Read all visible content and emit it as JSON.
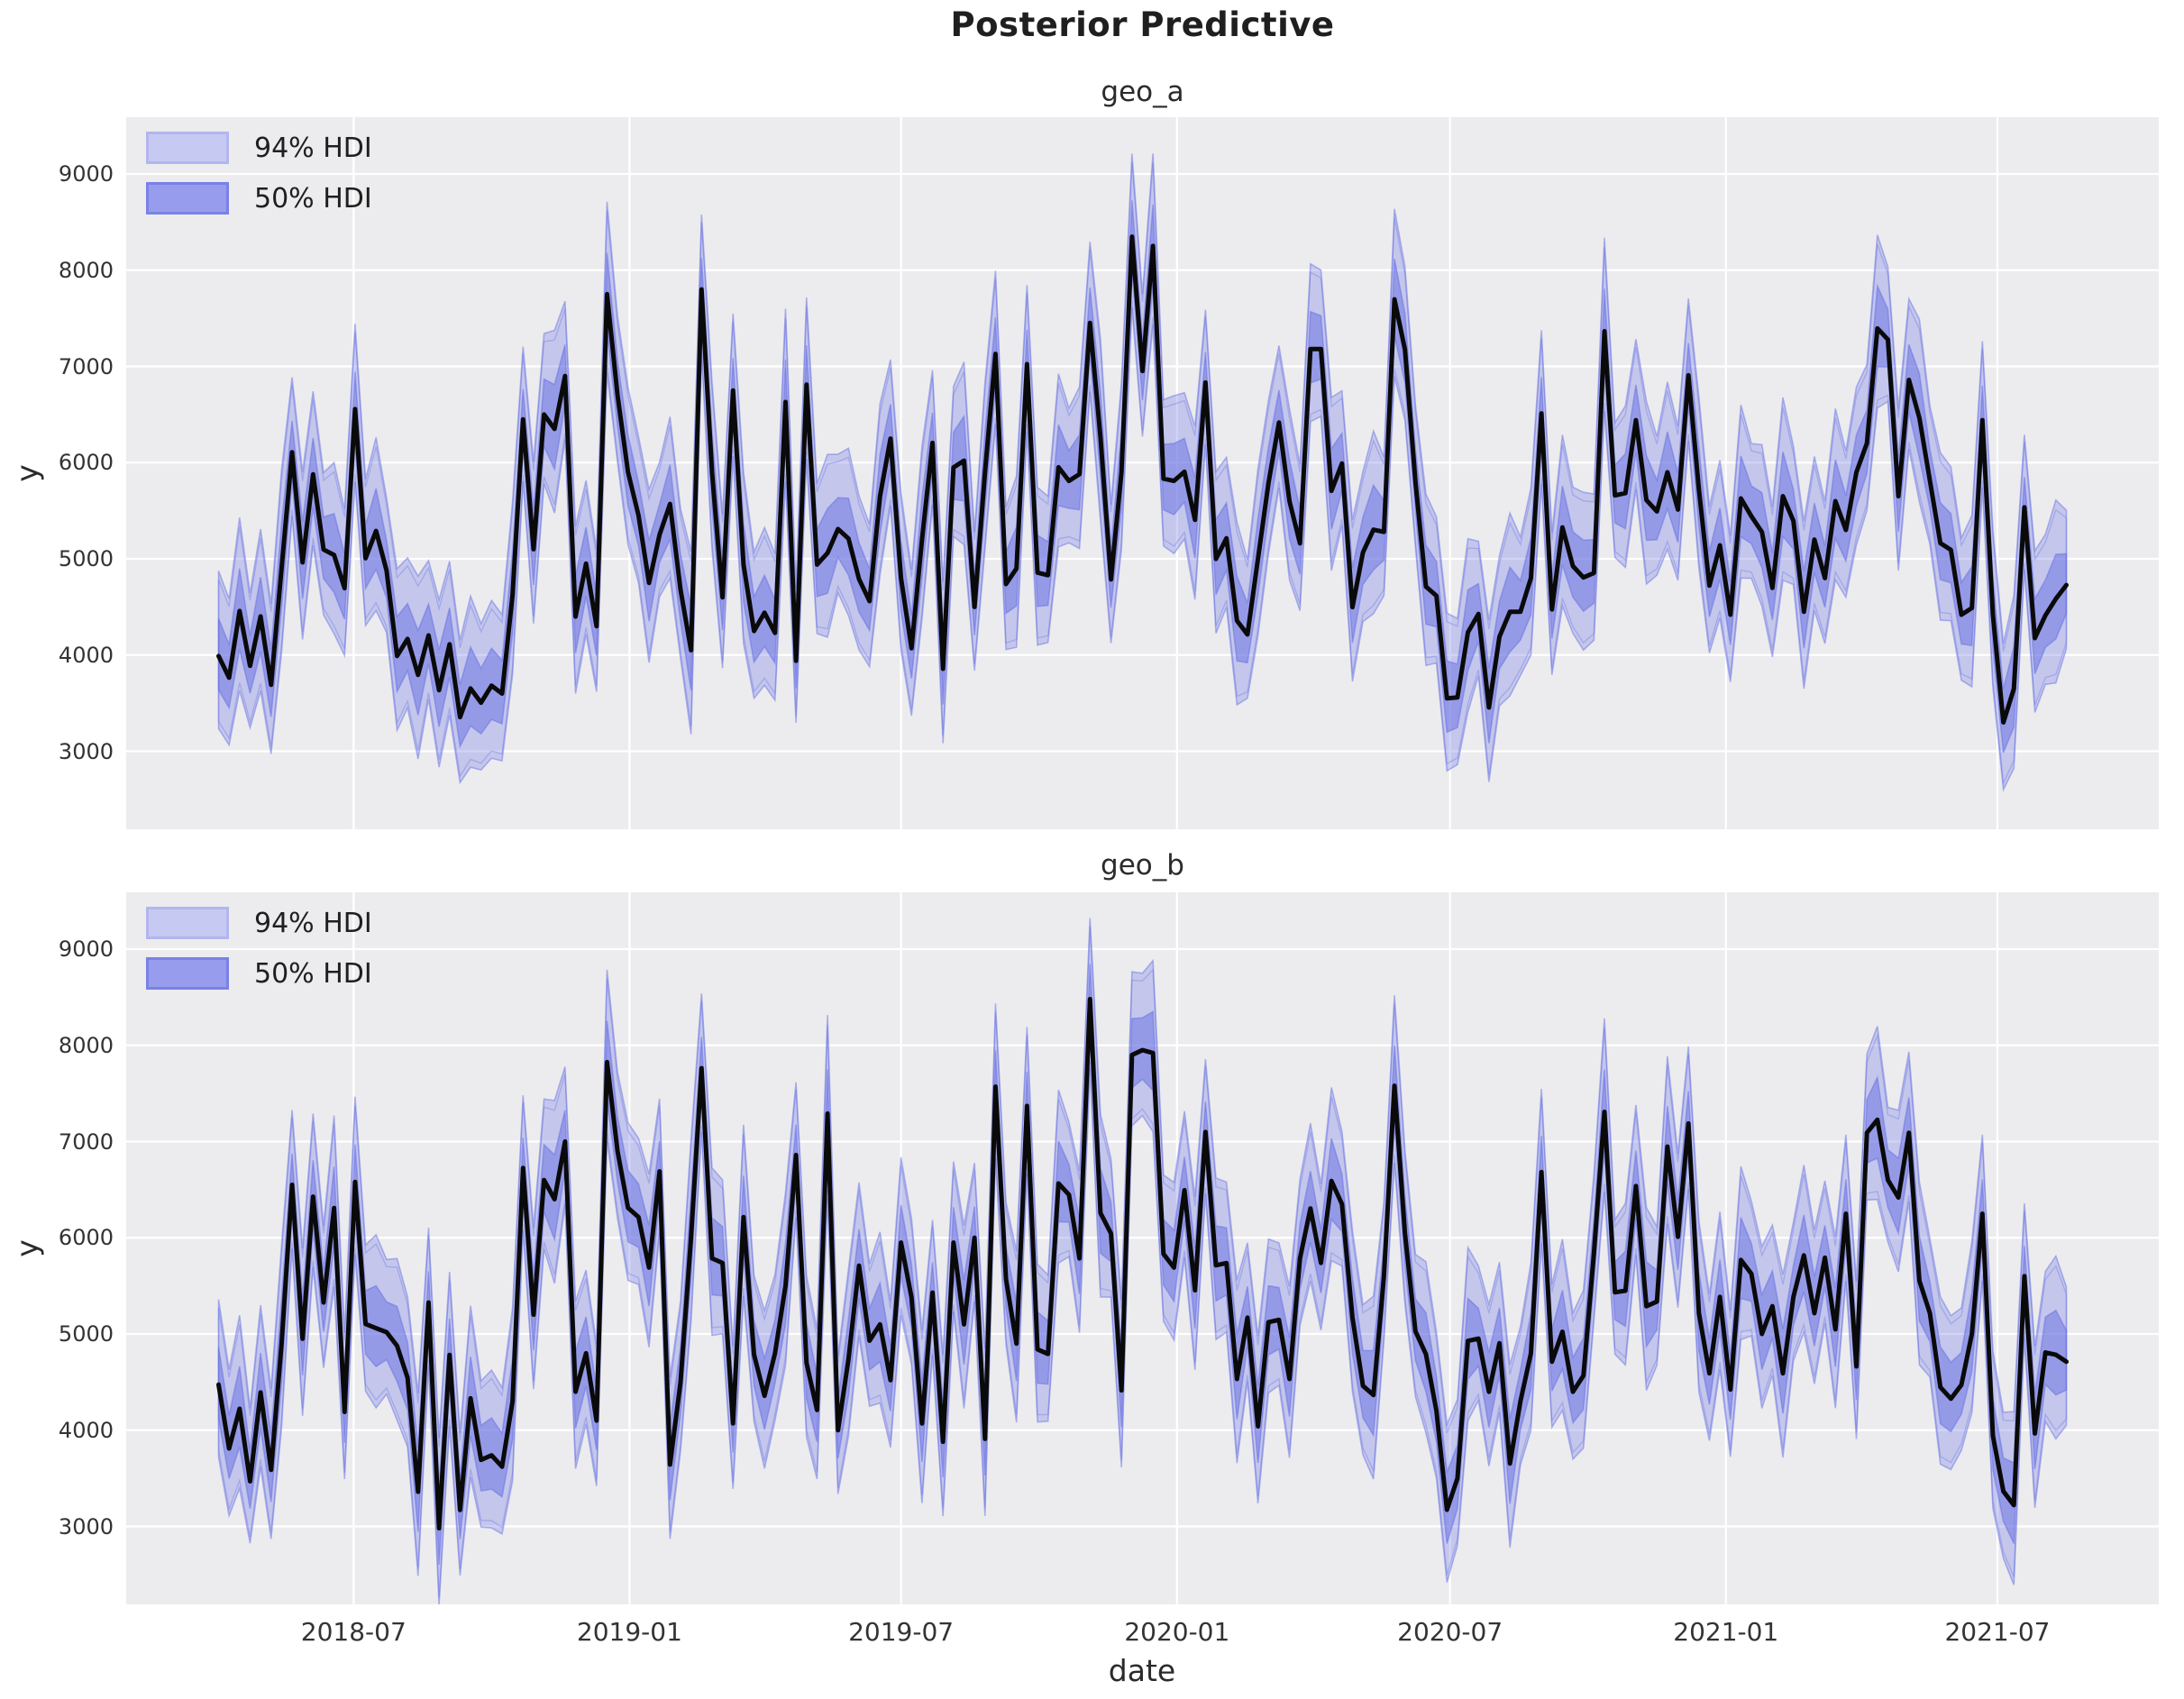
{
  "title": "Posterior Predictive",
  "legend": {
    "hdi94_label": "94% HDI",
    "hdi50_label": "50% HDI"
  },
  "colors": {
    "figure_background": "#ffffff",
    "axes_background": "#ececee",
    "grid": "#ffffff",
    "mean_line": "#0a0a0a",
    "hdi94_fill": "rgba(112,120,229,0.32)",
    "hdi50_fill": "rgba(106,114,228,0.52)",
    "band_edge": "rgba(95,104,226,0.45)",
    "legend_swatch_94": "#c6c9f1",
    "legend_swatch_50": "#979cec",
    "text": "#262626"
  },
  "chart_data": [
    {
      "type": "line",
      "title": "geo_a",
      "xlabel": "date",
      "ylabel": "y",
      "grid": true,
      "legend_entries": [
        "94% HDI",
        "50% HDI"
      ],
      "legend_position": "upper left",
      "x_start_date": "2018-04-02",
      "x_step_days": 7,
      "x_tick_labels": [
        "2018-07",
        "2019-01",
        "2019-07",
        "2020-01",
        "2020-07",
        "2021-01",
        "2021-07"
      ],
      "x_tick_week_positions": [
        12.86,
        39.14,
        65.0,
        91.29,
        117.29,
        143.57,
        169.43
      ],
      "y_ticks": [
        3000,
        4000,
        5000,
        6000,
        7000,
        8000,
        9000
      ],
      "ylim": [
        2190,
        9590
      ],
      "xlim_weeks": [
        -8.8,
        184.8
      ],
      "show_x_tick_labels": false,
      "mean": [
        3990,
        3765,
        4458,
        3888,
        4402,
        3691,
        4903,
        6108,
        4963,
        5878,
        5097,
        5040,
        4695,
        6556,
        5006,
        5290,
        4878,
        3990,
        4168,
        3794,
        4205,
        3635,
        4112,
        3355,
        3653,
        3505,
        3682,
        3600,
        4624,
        6450,
        5100,
        6500,
        6350,
        6900,
        4400,
        4950,
        4300,
        7750,
        6700,
        5900,
        5450,
        4750,
        5250,
        5570,
        4680,
        4050,
        7800,
        5900,
        4600,
        6750,
        4940,
        4250,
        4440,
        4230,
        6630,
        3940,
        6810,
        4940,
        5060,
        5310,
        5210,
        4790,
        4560,
        5650,
        6250,
        4800,
        4070,
        5200,
        6205,
        3857,
        5950,
        6020,
        4500,
        5900,
        7130,
        4738,
        4900,
        7024,
        4857,
        4830,
        5952,
        5810,
        5880,
        7452,
        6262,
        4786,
        5900,
        8348,
        6952,
        8252,
        5833,
        5810,
        5905,
        5405,
        6833,
        4999,
        5214,
        4357,
        4214,
        5000,
        5786,
        6417,
        5600,
        5161,
        7180,
        7180,
        5706,
        5991,
        4498,
        5066,
        5303,
        5280,
        7697,
        7175,
        5800,
        4711,
        4616,
        3550,
        3560,
        4237,
        4427,
        3455,
        4190,
        4450,
        4450,
        4800,
        6512,
        4474,
        5327,
        4924,
        4806,
        4853,
        7365,
        5659,
        5683,
        6441,
        5611,
        5493,
        5900,
        5512,
        6907,
        5721,
        4721,
        5140,
        4419,
        5628,
        5442,
        5279,
        4698,
        5651,
        5395,
        4450,
        5200,
        4800,
        5600,
        5300,
        5900,
        6200,
        7395,
        7279,
        5651,
        6860,
        6465,
        5814,
        5163,
        5093,
        4419,
        4489,
        6442,
        4419,
        3300,
        3650,
        5535,
        4176,
        4412,
        4585,
        4727
      ],
      "hdi94_halfwidth_pattern": [
        820,
        760,
        900,
        700,
        840,
        780,
        950,
        720,
        870,
        800,
        740,
        890,
        760
      ],
      "hdi50_halfwidth_pattern": [
        370,
        330,
        420,
        300,
        390,
        350,
        440,
        310,
        400,
        360,
        320,
        410,
        340
      ],
      "band_skew": {
        "hdi94_up": 1.08,
        "hdi94_down": 0.92,
        "hdi50_up": 1.05,
        "hdi50_down": 0.95
      }
    },
    {
      "type": "line",
      "title": "geo_b",
      "xlabel": "date",
      "ylabel": "y",
      "grid": true,
      "legend_entries": [
        "94% HDI",
        "50% HDI"
      ],
      "legend_position": "upper left",
      "x_start_date": "2018-04-02",
      "x_step_days": 7,
      "x_tick_labels": [
        "2018-07",
        "2019-01",
        "2019-07",
        "2020-01",
        "2020-07",
        "2021-01",
        "2021-07"
      ],
      "x_tick_week_positions": [
        12.86,
        39.14,
        65.0,
        91.29,
        117.29,
        143.57,
        169.43
      ],
      "y_ticks": [
        3000,
        4000,
        5000,
        6000,
        7000,
        8000,
        9000
      ],
      "ylim": [
        2190,
        9590
      ],
      "xlim_weeks": [
        -8.8,
        184.8
      ],
      "show_x_tick_labels": true,
      "mean": [
        4474,
        3810,
        4223,
        3469,
        4393,
        3588,
        4900,
        6550,
        4950,
        6427,
        5327,
        6309,
        4190,
        6580,
        5104,
        5060,
        5019,
        4877,
        4545,
        3360,
        5327,
        2981,
        4782,
        3171,
        4332,
        3692,
        3739,
        3621,
        4300,
        6725,
        5200,
        6600,
        6400,
        7000,
        4400,
        4800,
        4100,
        7825,
        6900,
        6310,
        6214,
        5690,
        6690,
        3643,
        4500,
        6000,
        7762,
        5786,
        5738,
        4071,
        6214,
        4786,
        4357,
        4800,
        5500,
        6860,
        4700,
        4210,
        7290,
        4000,
        4740,
        5710,
        4930,
        5100,
        4520,
        5950,
        5380,
        4070,
        5430,
        3880,
        5950,
        5100,
        6000,
        3910,
        7570,
        5570,
        4900,
        7370,
        4840,
        4792,
        6565,
        6447,
        5785,
        8480,
        6258,
        6045,
        4414,
        7900,
        7950,
        7920,
        5832,
        5690,
        6494,
        5454,
        7100,
        5714,
        5737,
        4532,
        5170,
        4040,
        5123,
        5147,
        4532,
        5785,
        6305,
        5738,
        6590,
        6350,
        5170,
        4461,
        4366,
        5600,
        7580,
        6045,
        5028,
        4790,
        4200,
        3173,
        3500,
        4928,
        4952,
        4399,
        4904,
        3654,
        4300,
        4800,
        6683,
        4712,
        5024,
        4399,
        4567,
        5841,
        7308,
        5433,
        5450,
        6538,
        5288,
        5337,
        6947,
        6010,
        7188,
        5216,
        4591,
        5385,
        4423,
        5769,
        5625,
        5000,
        5289,
        4591,
        5385,
        5817,
        5216,
        5793,
        5048,
        6250,
        4663,
        7091,
        7226,
        6600,
        6418,
        7091,
        5553,
        5216,
        4447,
        4327,
        4471,
        5000,
        6250,
        3942,
        3365,
        3221,
        5601,
        3966,
        4808,
        4784,
        4712
      ],
      "hdi94_halfwidth_pattern": [
        820,
        760,
        900,
        700,
        840,
        780,
        950,
        720,
        870,
        800,
        740,
        890,
        760
      ],
      "hdi50_halfwidth_pattern": [
        370,
        330,
        420,
        300,
        390,
        350,
        440,
        310,
        400,
        360,
        320,
        410,
        340
      ],
      "band_skew": {
        "hdi94_up": 1.08,
        "hdi94_down": 0.92,
        "hdi50_up": 1.05,
        "hdi50_down": 0.95
      }
    }
  ]
}
